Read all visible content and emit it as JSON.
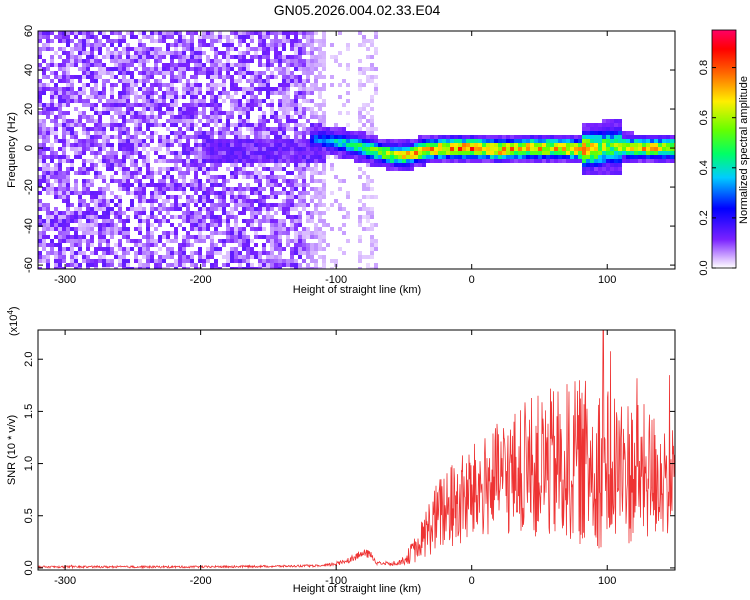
{
  "chart_data": [
    {
      "type": "heatmap",
      "title": "GN05.2026.004.02.33.E04",
      "xlabel": "Height of straight line (km)",
      "ylabel": "Frequency (Hz)",
      "xlim": [
        -320,
        150
      ],
      "ylim": [
        -62,
        60
      ],
      "xticks": [
        -300,
        -200,
        -100,
        0,
        100
      ],
      "yticks": [
        -60,
        -40,
        -20,
        0,
        20,
        40,
        60
      ],
      "grid": false,
      "noise_region_km": [
        -320,
        -110
      ],
      "secondary_noise_km": [
        -85,
        -72
      ],
      "signal_track": {
        "x": [
          -120,
          -100,
          -80,
          -65,
          -55,
          -45,
          -35,
          -20,
          0,
          20,
          40,
          60,
          80,
          95,
          100,
          120,
          150
        ],
        "frequency": [
          6,
          4,
          1,
          -2,
          -3,
          -2,
          0,
          1,
          1,
          0,
          1,
          1,
          0,
          1,
          2,
          1,
          1
        ],
        "peak_amplitude": [
          0.3,
          0.45,
          0.6,
          0.7,
          0.75,
          0.8,
          0.85,
          0.85,
          0.9,
          0.85,
          0.85,
          0.8,
          0.85,
          0.7,
          0.6,
          0.8,
          0.8
        ]
      },
      "colorbar": {
        "label": "Normalized spectral amplitude",
        "range": [
          0,
          0.95
        ],
        "ticks": [
          "0.0",
          "0.2",
          "0.4",
          "0.6",
          "0.8"
        ],
        "tick_values": [
          0,
          0.2,
          0.4,
          0.6,
          0.8
        ],
        "colormap": "rainbow (white-purple-blue-cyan-green-yellow-red-magenta)"
      }
    },
    {
      "type": "line",
      "xlabel": "Height of straight line (km)",
      "ylabel": "SNR (10 * v/v)",
      "multiplier": "(x10",
      "multiplier_exp": "4",
      "multiplier_end": ")",
      "xlim": [
        -320,
        150
      ],
      "ylim": [
        -0.02,
        2.28
      ],
      "xticks": [
        -300,
        -200,
        -100,
        0,
        100
      ],
      "yticks": [
        "0.0",
        "0.5",
        "1.0",
        "1.5",
        "2.0"
      ],
      "ytick_values": [
        0,
        0.5,
        1.0,
        1.5,
        2.0
      ],
      "color": "#ee3333",
      "series": [
        {
          "name": "SNR",
          "x": [
            -320,
            -200,
            -110,
            -100,
            -90,
            -80,
            -75,
            -70,
            -60,
            -50,
            -40,
            -30,
            -20,
            -10,
            0,
            10,
            20,
            30,
            40,
            50,
            60,
            70,
            80,
            90,
            95,
            100,
            110,
            120,
            130,
            140,
            150
          ],
          "baseline": [
            0.01,
            0.01,
            0.02,
            0.04,
            0.08,
            0.14,
            0.13,
            0.05,
            0.04,
            0.07,
            0.2,
            0.42,
            0.56,
            0.62,
            0.7,
            0.78,
            0.85,
            0.9,
            0.95,
            0.97,
            0.98,
            1.0,
            1.02,
            1.0,
            0.98,
            0.98,
            0.95,
            0.92,
            0.9,
            0.88,
            0.85
          ],
          "spread": [
            0.01,
            0.01,
            0.01,
            0.02,
            0.03,
            0.04,
            0.04,
            0.02,
            0.02,
            0.04,
            0.15,
            0.3,
            0.4,
            0.45,
            0.48,
            0.5,
            0.55,
            0.6,
            0.65,
            0.7,
            0.75,
            0.78,
            0.8,
            0.8,
            0.8,
            0.8,
            0.75,
            0.7,
            0.65,
            0.6,
            0.55
          ],
          "peak_value": 2.28,
          "peak_x": 97
        }
      ]
    }
  ]
}
